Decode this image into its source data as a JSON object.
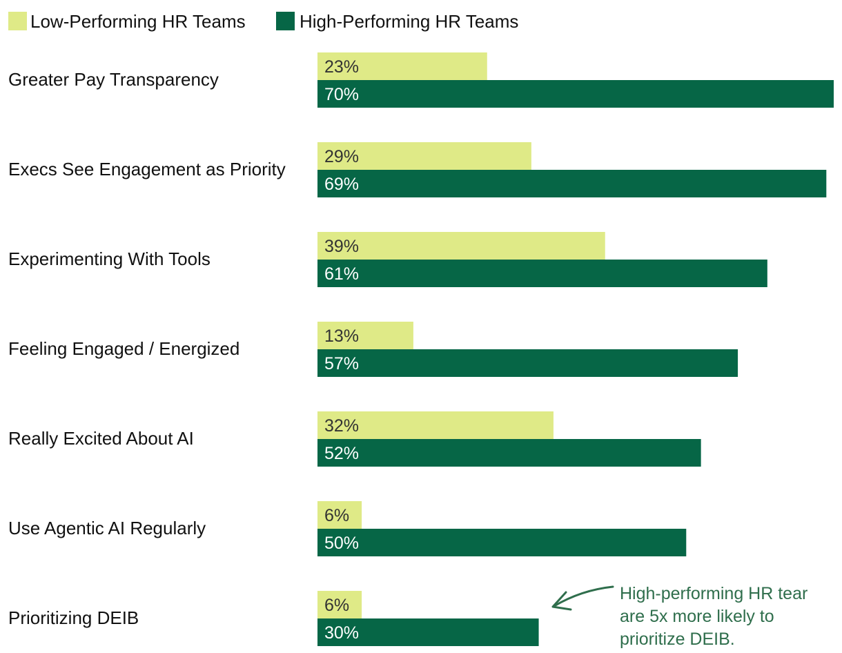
{
  "chart_data": {
    "type": "bar",
    "orientation": "horizontal",
    "categories": [
      "Greater Pay Transparency",
      "Execs See Engagement as Priority",
      "Experimenting With Tools",
      "Feeling Engaged / Energized",
      "Really Excited About AI",
      "Use Agentic AI Regularly",
      "Prioritizing DEIB"
    ],
    "series": [
      {
        "name": "Low-Performing HR Teams",
        "values": [
          23,
          29,
          39,
          13,
          32,
          6,
          6
        ],
        "labels": [
          "23%",
          "29%",
          "39%",
          "13%",
          "32%",
          "6%",
          "6%"
        ],
        "color": "#dfea87"
      },
      {
        "name": "High-Performing HR Teams",
        "values": [
          70,
          69,
          61,
          57,
          52,
          50,
          30
        ],
        "labels": [
          "70%",
          "69%",
          "61%",
          "57%",
          "52%",
          "50%",
          "30%"
        ],
        "color": "#066646"
      }
    ],
    "xlim": [
      0,
      70
    ],
    "legend": "top-left",
    "annotation": {
      "lines": [
        "High-performing HR tear",
        "are 5x more likely to",
        "prioritize DEIB."
      ],
      "color": "#2f6e4c",
      "points_to": "Prioritizing DEIB"
    }
  }
}
